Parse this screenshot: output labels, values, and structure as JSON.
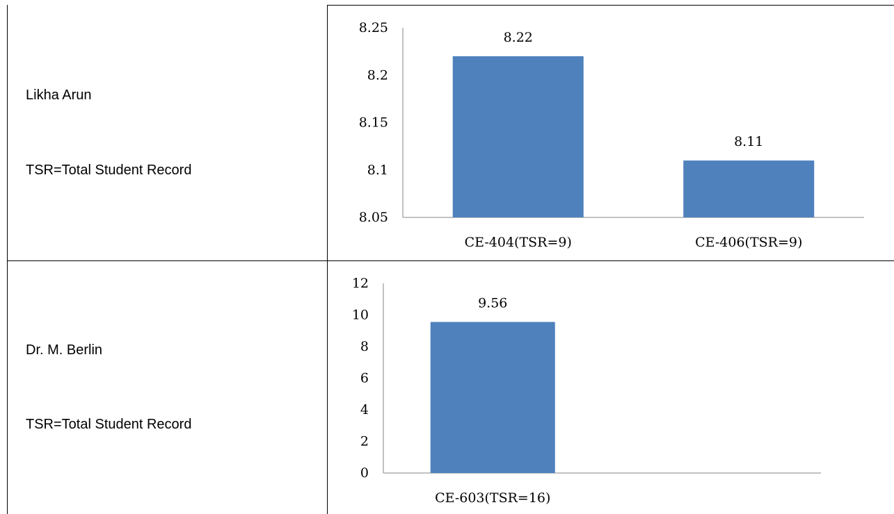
{
  "rows": [
    {
      "name": "Likha Arun",
      "note": "TSR=Total Student Record"
    },
    {
      "name": "Dr. M. Berlin",
      "note": "TSR=Total Student Record"
    }
  ],
  "chart_data": [
    {
      "type": "bar",
      "categories": [
        "CE-404(TSR=9)",
        "CE-406(TSR=9)"
      ],
      "values": [
        8.22,
        8.11
      ],
      "data_labels": [
        "8.22",
        "8.11"
      ],
      "yticks": [
        "8.25",
        "8.2",
        "8.15",
        "8.1",
        "8.05"
      ],
      "ylim": [
        8.05,
        8.25
      ],
      "grid": false,
      "bar_color": "#4F81BD"
    },
    {
      "type": "bar",
      "categories": [
        "CE-603(TSR=16)",
        ""
      ],
      "values": [
        9.56,
        null
      ],
      "data_labels": [
        "9.56",
        ""
      ],
      "yticks": [
        "12",
        "10",
        "8",
        "6",
        "4",
        "2",
        "0"
      ],
      "ylim": [
        0,
        12
      ],
      "grid": false,
      "bar_color": "#4F81BD"
    }
  ]
}
